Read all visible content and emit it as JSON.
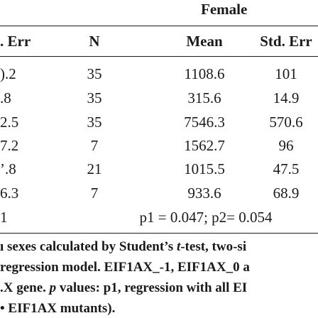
{
  "table": {
    "group_header": "Female",
    "columns": [
      ". Err",
      "N",
      "Mean",
      "Std. Err"
    ],
    "rows": [
      [
        ").2",
        "35",
        "1108.6",
        "101"
      ],
      [
        ".8",
        "35",
        "315.6",
        "14.9"
      ],
      [
        "2.5",
        "35",
        "7546.3",
        "570.6"
      ],
      [
        "7.2",
        "7",
        "1562.7",
        "96"
      ],
      [
        "’.8",
        "21",
        "1015.5",
        "47.5"
      ],
      [
        "6.3",
        "7",
        "933.6",
        "68.9"
      ]
    ],
    "pvalue_row": {
      "left": "1",
      "text": "p1 = 0.047; p2= 0.054"
    }
  },
  "footnote": {
    "line1_a": "ı sexes calculated by Student’s ",
    "line1_t": "t",
    "line1_b": "-test, two-si",
    "line2": " regression model. EIF1AX_-1, EIF1AX_0 a",
    "line3_a": ".X gene. ",
    "line3_p": "p",
    "line3_b": " values: p1, regression with all EI",
    "line4": "• EIF1AX mutants)."
  }
}
